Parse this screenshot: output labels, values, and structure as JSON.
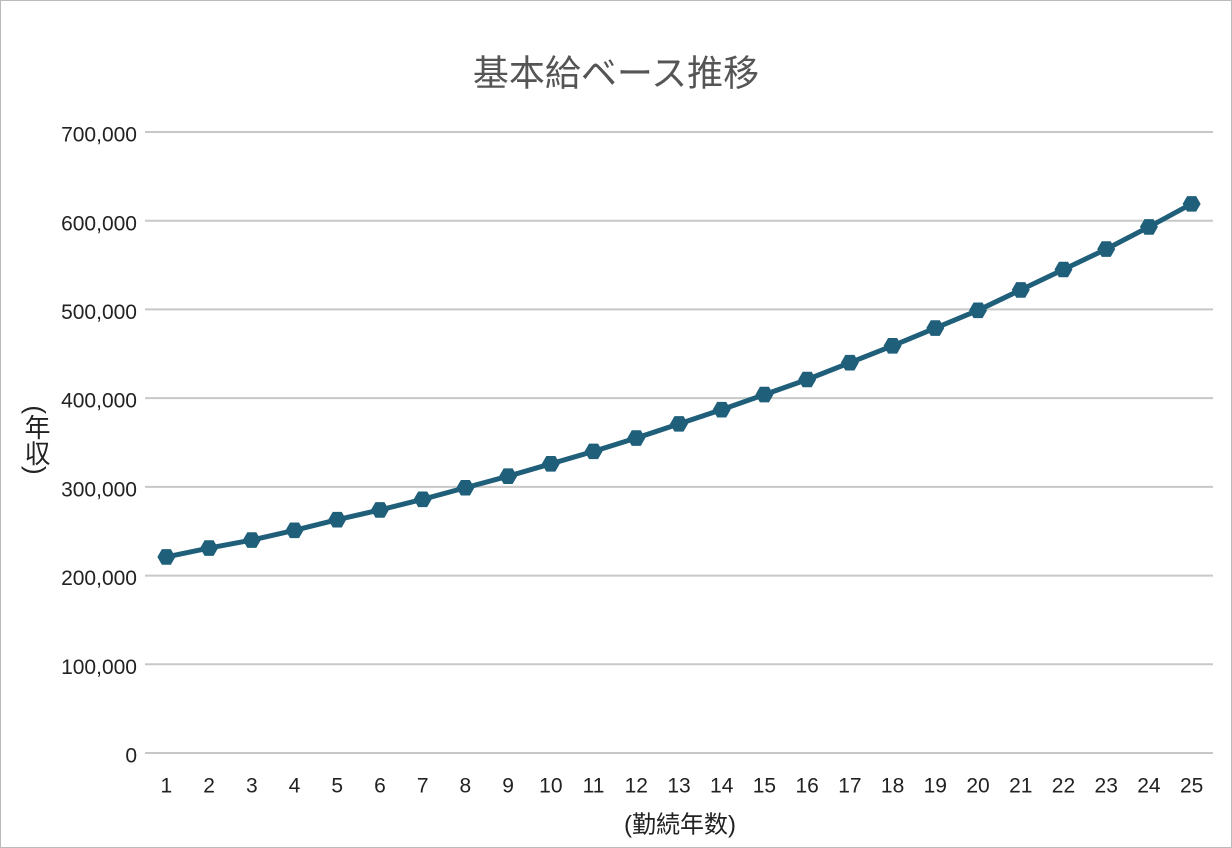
{
  "chart_data": {
    "type": "line",
    "title": "基本給ベース推移",
    "x_label": "(勤続年数)",
    "y_label": "(年収)",
    "categories": [
      "1",
      "2",
      "3",
      "4",
      "5",
      "6",
      "7",
      "8",
      "9",
      "10",
      "11",
      "12",
      "13",
      "14",
      "15",
      "16",
      "17",
      "18",
      "19",
      "20",
      "21",
      "22",
      "23",
      "24",
      "25"
    ],
    "series": [
      {
        "name": "基本給",
        "color": "#1f5f7a",
        "values": [
          221000,
          231000,
          240000,
          251000,
          263000,
          274000,
          286000,
          299000,
          312000,
          326000,
          340000,
          355000,
          371000,
          387000,
          404000,
          421000,
          440000,
          459000,
          479000,
          499000,
          522000,
          545000,
          568000,
          593000,
          619000
        ]
      }
    ],
    "ylim": [
      0,
      700000
    ],
    "yticks": [
      0,
      {
        "value": 100000,
        "label": "100,000"
      },
      {
        "value": 200000,
        "label": "200,000"
      },
      {
        "value": 300000,
        "label": "300,000"
      },
      {
        "value": 400000,
        "label": "400,000"
      },
      {
        "value": 500000,
        "label": "500,000"
      },
      {
        "value": 600000,
        "label": "600,000"
      },
      {
        "value": 700000,
        "label": "700,000"
      }
    ],
    "grid": true
  }
}
